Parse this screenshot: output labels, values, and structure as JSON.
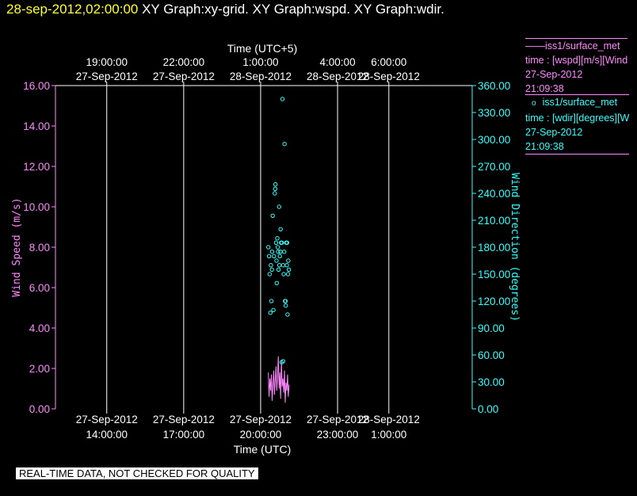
{
  "header": {
    "date": "28-sep-2012,02:00:00",
    "graphs": "XY Graph:xy-grid.  XY Graph:wspd.  XY Graph:wdir."
  },
  "colors": {
    "wspd": "#ff88ff",
    "wdir": "#33ffff",
    "date": "#ffff33",
    "grid": "#ffffff"
  },
  "legend": {
    "wspd": {
      "symbol": "——",
      "name": "iss1/surface_met",
      "line2": "time : [wspd][m/s][Wind",
      "line3": "27-Sep-2012",
      "line4": "21:09:38"
    },
    "wdir": {
      "symbol": "o",
      "name": "iss1/surface_met",
      "line2": "time : [wdir][degrees][W",
      "line3": "27-Sep-2012",
      "line4": "21:09:38"
    }
  },
  "disclaimer": "REAL-TIME DATA, NOT CHECKED FOR QUALITY",
  "chart_data": {
    "type": "scatter",
    "x_bottom_label": "Time (UTC)",
    "x_top_label": "Time (UTC+5)",
    "ylabel_left": "Wind Speed (m/s)",
    "ylabel_right": "Wind Direction (degrees)",
    "grid": true,
    "x_unit": "hours since 27-Sep-2012 00:00 UTC",
    "xlim": [
      12.0,
      28.25
    ],
    "ylim_left": [
      0,
      16
    ],
    "ylim_right": [
      0,
      360
    ],
    "bottom_ticks": [
      {
        "x": 14,
        "date": "27-Sep-2012",
        "time": "14:00:00"
      },
      {
        "x": 17,
        "date": "27-Sep-2012",
        "time": "17:00:00"
      },
      {
        "x": 20,
        "date": "27-Sep-2012",
        "time": "20:00:00"
      },
      {
        "x": 23,
        "date": "27-Sep-2012",
        "time": "23:00:00"
      },
      {
        "x": 25,
        "date": "28-Sep-2012",
        "time": "1:00:00"
      }
    ],
    "top_ticks": [
      {
        "x": 14,
        "date": "27-Sep-2012",
        "time": "19:00:00"
      },
      {
        "x": 17,
        "date": "27-Sep-2012",
        "time": "22:00:00"
      },
      {
        "x": 20,
        "date": "28-Sep-2012",
        "time": "1:00:00"
      },
      {
        "x": 23,
        "date": "28-Sep-2012",
        "time": "4:00:00"
      },
      {
        "x": 25,
        "date": "28-Sep-2012",
        "time": "6:00:00"
      }
    ],
    "left_ticks": [
      "0.00",
      "2.00",
      "4.00",
      "6.00",
      "8.00",
      "10.00",
      "12.00",
      "14.00",
      "16.00"
    ],
    "right_ticks": [
      "0.00",
      "30.00",
      "60.00",
      "90.00",
      "120.00",
      "150.00",
      "180.00",
      "210.00",
      "240.00",
      "270.00",
      "300.00",
      "330.00",
      "360.00"
    ],
    "series": [
      {
        "name": "iss1/surface_met time : [wspd][m/s][Wind",
        "axis": "left",
        "style": "line",
        "x": [
          20.3,
          20.33,
          20.36,
          20.39,
          20.42,
          20.45,
          20.48,
          20.51,
          20.54,
          20.57,
          20.6,
          20.63,
          20.66,
          20.69,
          20.72,
          20.75,
          20.78,
          20.81,
          20.84,
          20.87,
          20.9,
          20.93,
          20.96,
          20.99,
          21.02,
          21.05,
          21.08,
          21.11
        ],
        "y": [
          1.8,
          0.6,
          1.5,
          0.9,
          1.7,
          0.4,
          1.2,
          1.9,
          0.7,
          1.4,
          2.1,
          0.9,
          1.6,
          2.6,
          1.0,
          1.8,
          0.5,
          2.4,
          1.1,
          1.5,
          0.8,
          1.9,
          0.3,
          1.3,
          0.9,
          1.7,
          0.6,
          1.2
        ]
      },
      {
        "name": "iss1/surface_met time : [wdir][degrees][W",
        "axis": "right",
        "style": "markers",
        "x": [
          20.3,
          20.35,
          20.4,
          20.42,
          20.45,
          20.5,
          20.52,
          20.55,
          20.58,
          20.6,
          20.62,
          20.65,
          20.68,
          20.7,
          20.72,
          20.75,
          20.78,
          20.8,
          20.83,
          20.85,
          20.88,
          20.9,
          20.92,
          20.95,
          20.98,
          21.0,
          21.02,
          21.05,
          21.08,
          21.1,
          20.33,
          20.47,
          20.63,
          20.77,
          20.93,
          21.07,
          20.38,
          20.57,
          20.73,
          20.88,
          21.03,
          20.44,
          20.67,
          20.82,
          20.97
        ],
        "y": [
          180,
          150,
          160,
          120,
          175,
          110,
          170,
          240,
          250,
          185,
          165,
          190,
          175,
          155,
          225,
          170,
          200,
          185,
          185,
          345,
          160,
          150,
          175,
          120,
          115,
          185,
          160,
          105,
          165,
          155,
          170,
          215,
          140,
          175,
          295,
          150,
          107,
          245,
          160,
          53,
          185,
          155,
          180,
          52,
          120
        ]
      }
    ]
  }
}
